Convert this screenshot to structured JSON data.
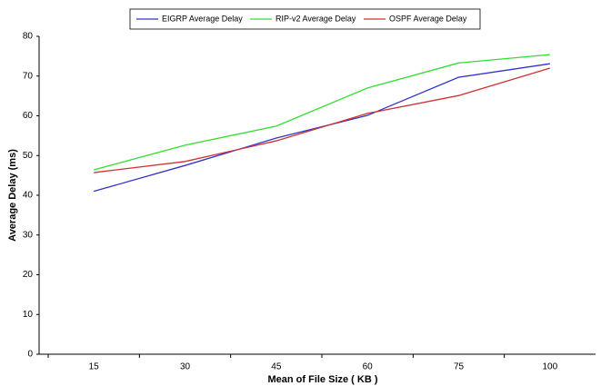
{
  "chart_data": {
    "type": "line",
    "x_label": "Mean of File Size ( KB )",
    "y_label": "Average Delay (ms)",
    "categories": [
      "15",
      "30",
      "45",
      "60",
      "75",
      "100"
    ],
    "series": [
      {
        "name": "EIGRP Average Delay",
        "color": "#3333cc",
        "values": [
          41,
          47.5,
          54.4,
          60.1,
          69.7,
          73.1
        ]
      },
      {
        "name": "RIP-v2 Average Delay",
        "color": "#33dd33",
        "values": [
          46.4,
          52.6,
          57.4,
          67,
          73.3,
          75.4
        ]
      },
      {
        "name": "OSPF Average Delay",
        "color": "#cc3333",
        "values": [
          45.7,
          48.5,
          53.7,
          60.6,
          65.1,
          72
        ]
      }
    ],
    "ylim": [
      0,
      80
    ],
    "yticks": [
      0,
      10,
      20,
      30,
      40,
      50,
      60,
      70,
      80
    ],
    "grid": false,
    "legend": "top"
  }
}
